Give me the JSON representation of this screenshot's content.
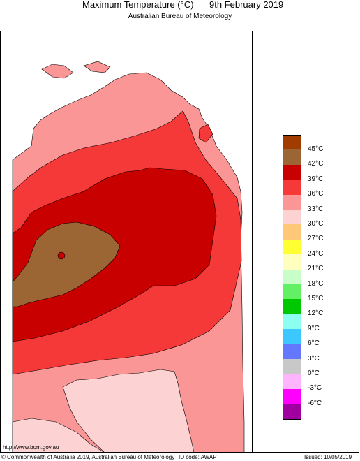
{
  "header": {
    "title": "Maximum Temperature (°C)",
    "date": "9th February 2019",
    "subtitle": "Australian Bureau of Meteorology"
  },
  "legend": {
    "items": [
      {
        "label": "45°C",
        "color": "#a03c00"
      },
      {
        "label": "42°C",
        "color": "#9c6634"
      },
      {
        "label": "39°C",
        "color": "#c80000"
      },
      {
        "label": "36°C",
        "color": "#f53838"
      },
      {
        "label": "33°C",
        "color": "#fa9696"
      },
      {
        "label": "30°C",
        "color": "#fcd2d2"
      },
      {
        "label": "27°C",
        "color": "#ffc878"
      },
      {
        "label": "24°C",
        "color": "#ffff32"
      },
      {
        "label": "21°C",
        "color": "#ffffbe"
      },
      {
        "label": "18°C",
        "color": "#c8ffc8"
      },
      {
        "label": "15°C",
        "color": "#64f064"
      },
      {
        "label": "12°C",
        "color": "#00c800"
      },
      {
        "label": "9°C",
        "color": "#8cfff0"
      },
      {
        "label": "6°C",
        "color": "#3cc8ff"
      },
      {
        "label": "3°C",
        "color": "#6478ff"
      },
      {
        "label": "0°C",
        "color": "#c8c8c8"
      },
      {
        "label": "-3°C",
        "color": "#ffb4ff"
      },
      {
        "label": "-6°C",
        "color": "#ff00ff"
      },
      {
        "label": "",
        "color": "#a000a0"
      }
    ]
  },
  "footer": {
    "url": "http://www.bom.gov.au",
    "copyright": "© Commonwealth of Australia 2019, Australian Bureau of Meteorology",
    "id_code": "ID code: AWAP",
    "issued": "Issued: 10/05/2019"
  }
}
